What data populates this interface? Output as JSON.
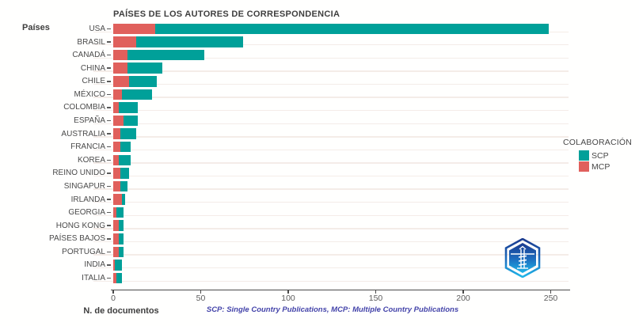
{
  "window": {
    "background": "#fffffe"
  },
  "chart": {
    "title": "PAÍSES DE LOS AUTORES DE CORRESPONDENCIA",
    "y_axis_title": "Países",
    "x_axis_title": "N. de documentos",
    "footnote": "SCP: Single Country Publications, MCP: Multiple Country Publications",
    "legend": {
      "title": "COLABORACIÓN",
      "items": [
        {
          "label": "SCP",
          "color": "#00A099"
        },
        {
          "label": "MCP",
          "color": "#E0605C"
        }
      ]
    },
    "colors": {
      "scp": "#00A099",
      "mcp": "#E0605C",
      "gridline": "#f4ece8",
      "axis_line": "#4a4a4a",
      "footnote_text": "#4343a9",
      "logo_dark_blue": "#1b3a8e",
      "logo_cyan": "#1fb6e8"
    },
    "watermark_icon": "biblioshiny-logo"
  },
  "chart_data": {
    "type": "bar",
    "orientation": "horizontal",
    "stacked": true,
    "title": "PAÍSES DE LOS AUTORES DE CORRESPONDENCIA",
    "xlabel": "N. de documentos",
    "ylabel": "Países",
    "xlim": [
      0,
      250
    ],
    "x_ticks": [
      0,
      50,
      100,
      150,
      200,
      250
    ],
    "grid": "horizontal",
    "legend_position": "right",
    "legend_title": "COLABORACIÓN",
    "categories": [
      "USA",
      "BRASIL",
      "CANADÁ",
      "CHINA",
      "CHILE",
      "MÉXICO",
      "COLOMBIA",
      "ESPAÑA",
      "AUSTRALIA",
      "FRANCIA",
      "KOREA",
      "REINO UNIDO",
      "SINGAPUR",
      "IRLANDA",
      "GEORGIA",
      "HONG KONG",
      "PAÍSES BAJOS",
      "PORTUGAL",
      "INDIA",
      "ITALIA"
    ],
    "stack_order": [
      "MCP",
      "SCP"
    ],
    "series": [
      {
        "name": "MCP",
        "color": "#E0605C",
        "values": [
          24,
          13,
          8,
          8,
          9,
          5,
          3,
          6,
          4,
          4,
          3,
          4,
          4,
          5,
          2,
          3,
          3,
          3,
          1,
          2
        ]
      },
      {
        "name": "SCP",
        "color": "#00A099",
        "values": [
          225,
          61,
          44,
          20,
          16,
          17,
          11,
          8,
          9,
          6,
          7,
          5,
          4,
          2,
          4,
          3,
          3,
          3,
          4,
          3
        ]
      }
    ]
  }
}
